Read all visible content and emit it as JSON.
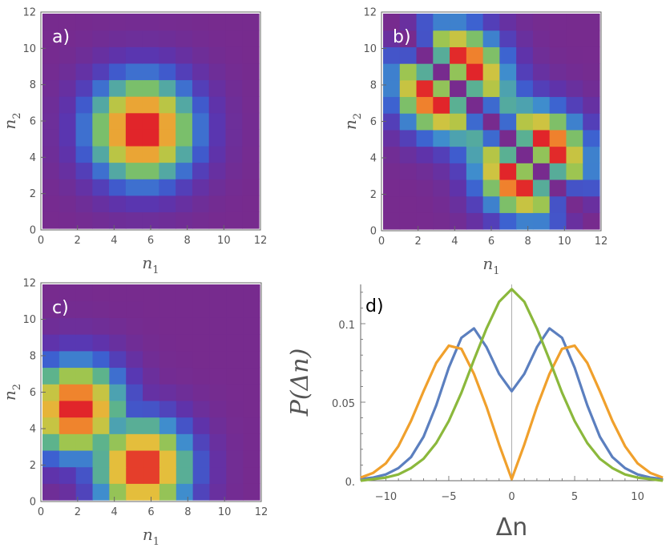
{
  "colors": {
    "series_blue": "#5b7fbf",
    "series_orange": "#f0a02c",
    "series_green": "#8bb83c",
    "axis": "#666666",
    "label_text": "#555555",
    "colormap": [
      "#772b8e",
      "#5a35b0",
      "#3d5fd0",
      "#3f95cc",
      "#66bb7a",
      "#a9c748",
      "#e3c03d",
      "#f08a2d",
      "#e1252a"
    ]
  },
  "chart_data": [
    {
      "id": "a",
      "type": "heatmap",
      "label": "a)",
      "xlabel": "n",
      "xlabel_sub": "1",
      "ylabel": "n",
      "ylabel_sub": "2",
      "xlim": [
        0,
        12
      ],
      "ylim": [
        0,
        12
      ],
      "xticks": [
        "0",
        "2",
        "4",
        "6",
        "8",
        "10",
        "12"
      ],
      "yticks": [
        "0",
        "2",
        "4",
        "6",
        "8",
        "10",
        "12"
      ],
      "model": "gauss2d",
      "params": {
        "peaks": [
          [
            5.5,
            5.5
          ]
        ],
        "sigma": 2.2
      }
    },
    {
      "id": "b",
      "type": "heatmap",
      "label": "b)",
      "xlabel": "n",
      "xlabel_sub": "1",
      "ylabel": "n",
      "ylabel_sub": "2",
      "xlim": [
        0,
        12
      ],
      "ylim": [
        0,
        12
      ],
      "xticks": [
        "0",
        "2",
        "4",
        "6",
        "8",
        "10",
        "12"
      ],
      "yticks": [
        "0",
        "2",
        "4",
        "6",
        "8",
        "10",
        "12"
      ],
      "model": "antidiagonal_pair",
      "params": {
        "peaks": [
          [
            3.5,
            8.5
          ],
          [
            8.5,
            3.5
          ]
        ],
        "sigma": 2.0,
        "node_line": 12.0
      }
    },
    {
      "id": "c",
      "type": "heatmap",
      "label": "c)",
      "xlabel": "n",
      "xlabel_sub": "1",
      "ylabel": "n",
      "ylabel_sub": "2",
      "xlim": [
        0,
        12
      ],
      "ylim": [
        0,
        12
      ],
      "xticks": [
        "0",
        "2",
        "4",
        "6",
        "8",
        "10",
        "12"
      ],
      "yticks": [
        "0",
        "2",
        "4",
        "6",
        "8",
        "10",
        "12"
      ],
      "model": "l_shape",
      "params": {
        "peaks": [
          [
            1.5,
            5.0
          ],
          [
            5.5,
            1.5
          ]
        ],
        "sigma": 2.0
      }
    },
    {
      "id": "d",
      "type": "line",
      "label": "d)",
      "xlabel": "Δn",
      "ylabel": "P(Δn)",
      "xlim": [
        -12,
        12
      ],
      "ylim": [
        0,
        0.125
      ],
      "xticks": [
        {
          "v": -10,
          "label": "−10"
        },
        {
          "v": -5,
          "label": "−5"
        },
        {
          "v": 0,
          "label": "0"
        },
        {
          "v": 5,
          "label": "5"
        },
        {
          "v": 10,
          "label": "10"
        }
      ],
      "yticks": [
        {
          "v": 0,
          "label": "0."
        },
        {
          "v": 0.05,
          "label": "0.05"
        },
        {
          "v": 0.1,
          "label": "0.1"
        }
      ],
      "x": [
        -12,
        -11,
        -10,
        -9,
        -8,
        -7,
        -6,
        -5,
        -4,
        -3,
        -2,
        -1,
        0,
        1,
        2,
        3,
        4,
        5,
        6,
        7,
        8,
        9,
        10,
        11,
        12
      ],
      "series": [
        {
          "name": "blue",
          "color": "#5b7fbf",
          "values": [
            0.001,
            0.002,
            0.004,
            0.008,
            0.015,
            0.028,
            0.048,
            0.072,
            0.091,
            0.097,
            0.085,
            0.068,
            0.057,
            0.068,
            0.085,
            0.097,
            0.091,
            0.072,
            0.048,
            0.028,
            0.015,
            0.008,
            0.004,
            0.002,
            0.001
          ]
        },
        {
          "name": "orange",
          "color": "#f0a02c",
          "values": [
            0.002,
            0.005,
            0.011,
            0.022,
            0.038,
            0.057,
            0.075,
            0.086,
            0.084,
            0.068,
            0.047,
            0.023,
            0.001,
            0.023,
            0.047,
            0.068,
            0.084,
            0.086,
            0.075,
            0.057,
            0.038,
            0.022,
            0.011,
            0.005,
            0.002
          ]
        },
        {
          "name": "green",
          "color": "#8bb83c",
          "values": [
            0.0,
            0.001,
            0.002,
            0.004,
            0.008,
            0.014,
            0.024,
            0.038,
            0.056,
            0.077,
            0.097,
            0.114,
            0.122,
            0.114,
            0.097,
            0.077,
            0.056,
            0.038,
            0.024,
            0.014,
            0.008,
            0.004,
            0.002,
            0.001,
            0.0
          ]
        }
      ]
    }
  ]
}
